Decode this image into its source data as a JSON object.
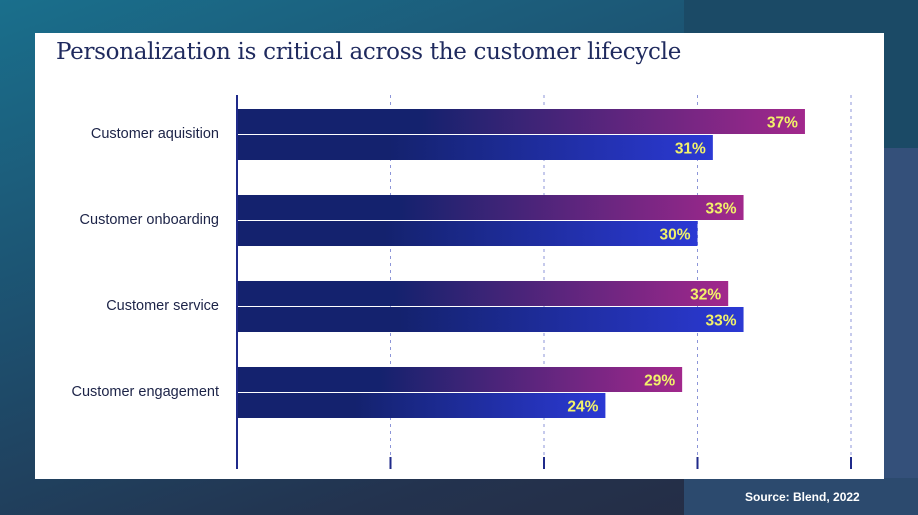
{
  "header": {
    "title": "Personalization is critical across the customer lifecycle"
  },
  "footer": {
    "source": "Source: Blend, 2022"
  },
  "colors": {
    "bar_dark": "#14226e",
    "series1_end": "#a2288c",
    "series2_end": "#2b39d4",
    "label_text": "#f2f26a",
    "axis": "#1f2a8a",
    "grid": "#8c95d8",
    "category_text": "#1c2347"
  },
  "chart_data": {
    "type": "bar",
    "orientation": "horizontal",
    "categories": [
      "Customer aquisition",
      "Customer onboarding",
      "Customer service",
      "Customer engagement"
    ],
    "series": [
      {
        "values": [
          37,
          33,
          32,
          29
        ],
        "labels": [
          "37%",
          "33%",
          "32%",
          "29%"
        ]
      },
      {
        "values": [
          31,
          30,
          33,
          24
        ],
        "labels": [
          "31%",
          "30%",
          "33%",
          "24%"
        ]
      }
    ],
    "xlim": [
      0,
      40
    ],
    "grid": true,
    "legend": "none"
  }
}
